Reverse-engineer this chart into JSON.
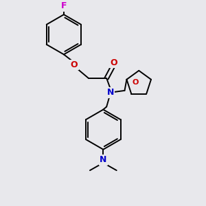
{
  "background_color": "#e8e8ec",
  "atom_colors": {
    "F": "#cc00cc",
    "O": "#cc0000",
    "N": "#0000cc",
    "C": "#000000"
  },
  "bond_lw": 1.4,
  "font_size": 9
}
